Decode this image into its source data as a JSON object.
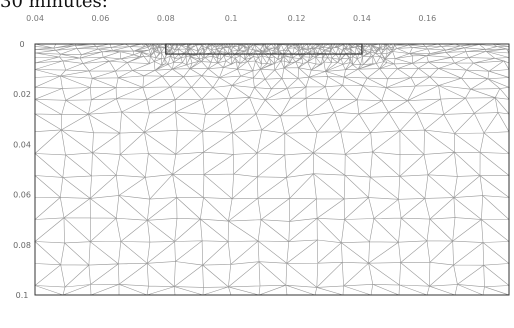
{
  "caption": "30 minutes:",
  "figure": {
    "description_kind": "finite-element triangular mesh of a rectangular domain with a refined rectangular inset near the top surface",
    "mesh_color": "#9a9a9a",
    "outline_color": "#333333",
    "x_ticks": [
      "0.04",
      "0.06",
      "0.08",
      "0.1",
      "0.12",
      "0.14",
      "0.16"
    ],
    "x_tick_values": [
      0.04,
      0.06,
      0.08,
      0.1,
      0.12,
      0.14,
      0.16
    ],
    "y_ticks": [
      "0",
      "0.02",
      "0.04",
      "0.06",
      "0.08",
      "0.1"
    ],
    "y_tick_values": [
      0,
      0.02,
      0.04,
      0.06,
      0.08,
      0.1
    ],
    "x_range": [
      0.04,
      0.185
    ],
    "y_range": [
      0,
      0.1
    ],
    "inset_x_range": [
      0.08,
      0.14
    ],
    "inset_depth": 0.004
  }
}
